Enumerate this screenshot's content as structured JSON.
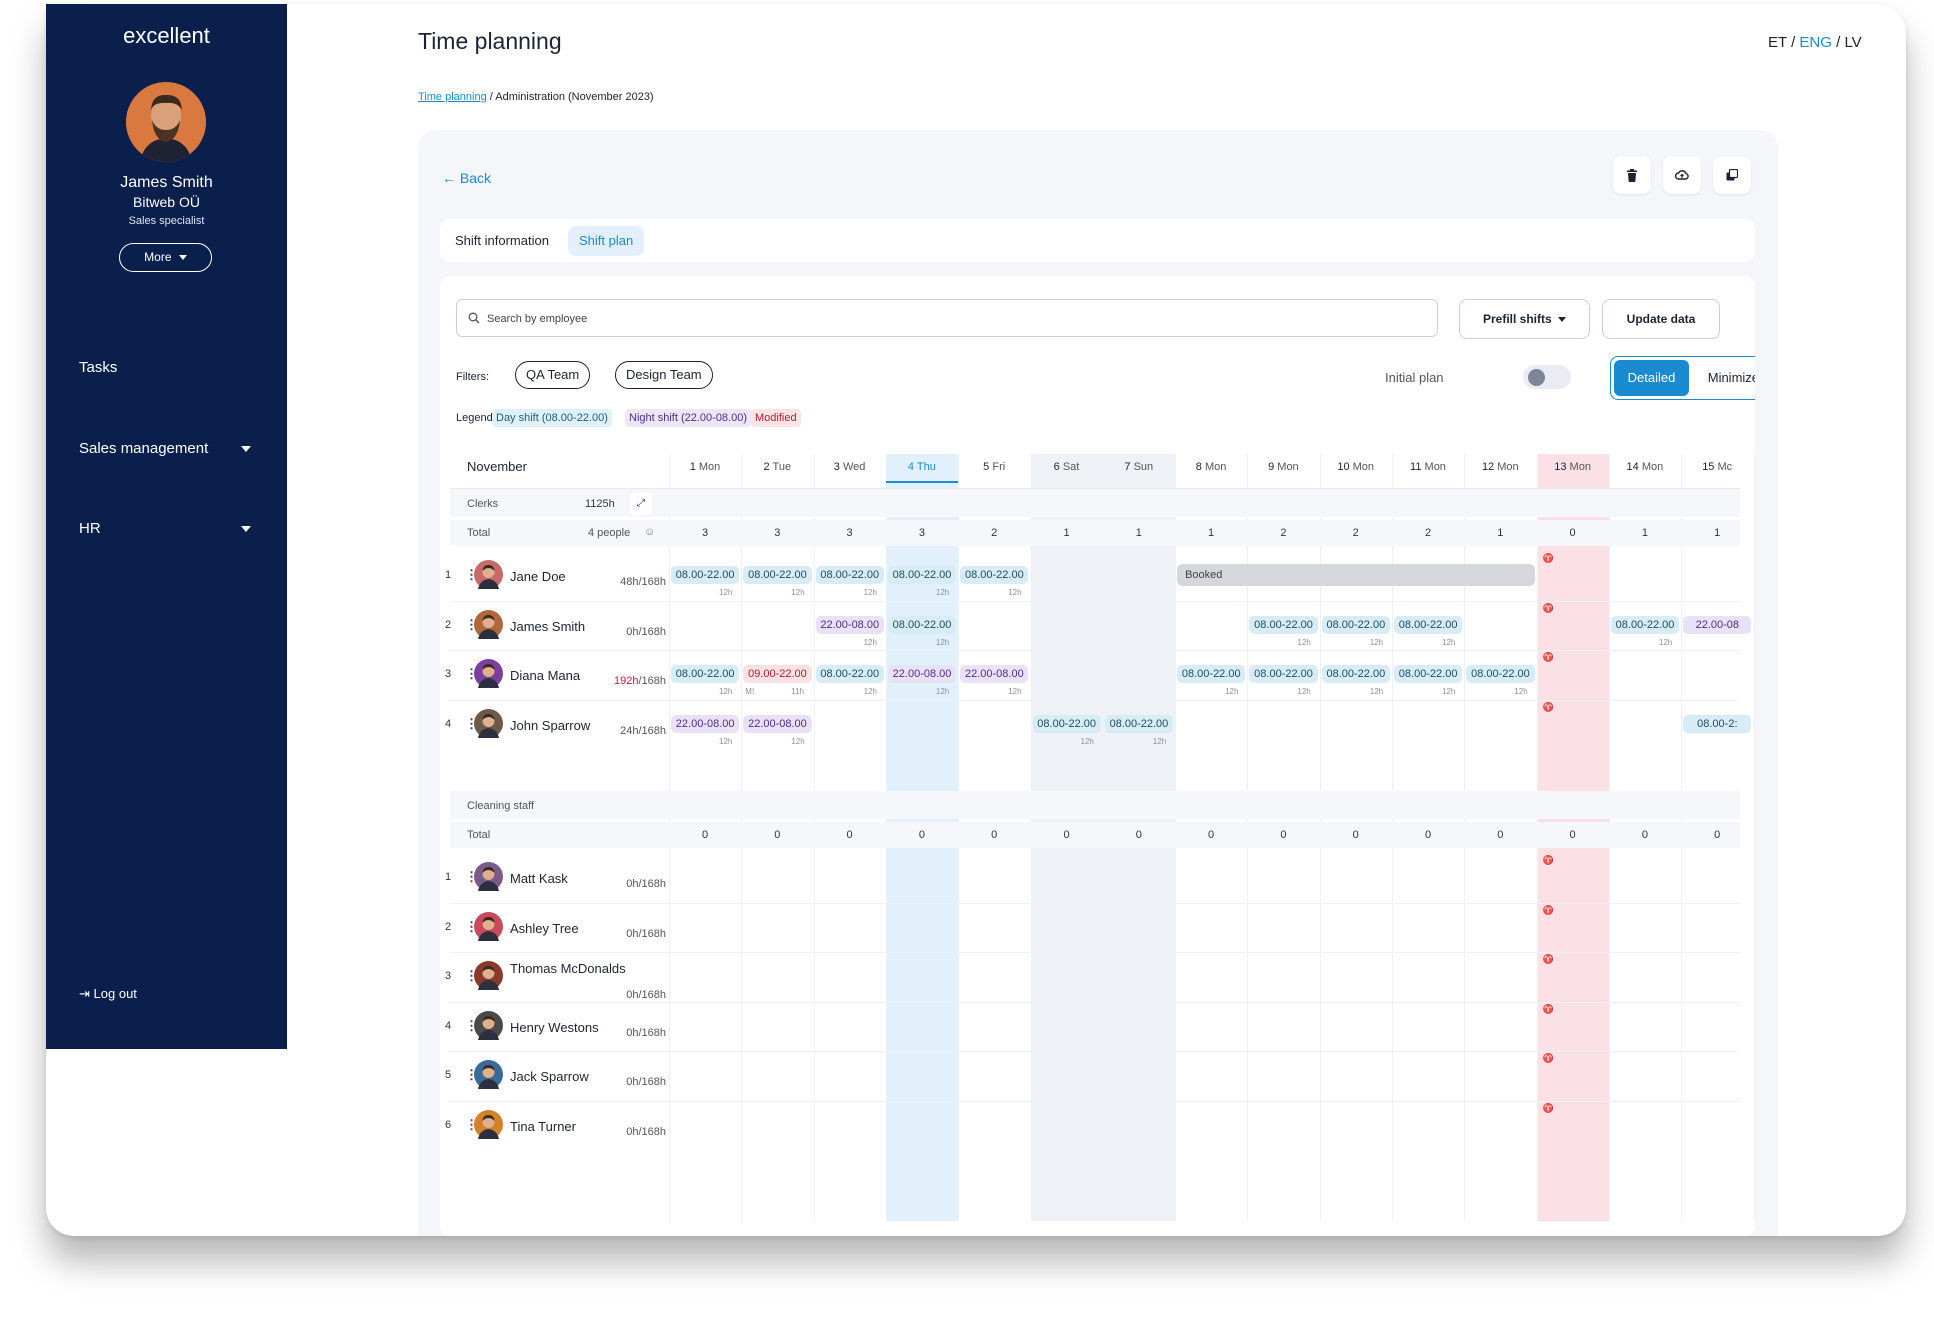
{
  "app": {
    "brand": "excellent",
    "page_title": "Time planning"
  },
  "user": {
    "name": "James Smith",
    "company": "Bitweb OÜ",
    "role": "Sales specialist",
    "more_label": "More"
  },
  "nav": {
    "tasks": "Tasks",
    "sales": "Sales management",
    "hr": "HR",
    "logout": "Log out"
  },
  "lang": {
    "et": "ET",
    "eng": "ENG",
    "lv": "LV",
    "sep": "/"
  },
  "breadcrumb": {
    "link": "Time planning",
    "current": " / Administration (November 2023)"
  },
  "back_label": "Back",
  "tabs": [
    "Shift information",
    "Shift plan"
  ],
  "search": {
    "placeholder": "Search by employee"
  },
  "buttons": {
    "prefill": "Prefill shifts",
    "update": "Update data"
  },
  "filters": {
    "label": "Filters:",
    "chips": [
      "QA Team",
      "Design Team"
    ]
  },
  "initial_plan": {
    "label": "Initial plan",
    "on": false
  },
  "view_toggle": {
    "detailed": "Detailed",
    "minimized": "Minimized",
    "selected": "Detailed"
  },
  "legend": {
    "label": "Legend:",
    "day": "Day shift (08.00-22.00)",
    "night": "Night shift (22.00-08.00)",
    "modified": "Modified"
  },
  "colors": {
    "accent": "#1a8bd0",
    "sidebar": "#0b1f4d",
    "day": "#d7ecf5",
    "night": "#e9e2f6",
    "modified": "#f9e1e4",
    "holiday": "#fbe1e5",
    "weekend": "#eef1f6",
    "today": "#e2f0fb"
  },
  "schedule": {
    "month": "November",
    "days": [
      {
        "num": "1",
        "dow": "Mon"
      },
      {
        "num": "2",
        "dow": "Tue"
      },
      {
        "num": "3",
        "dow": "Wed"
      },
      {
        "num": "4",
        "dow": "Thu"
      },
      {
        "num": "5",
        "dow": "Fri"
      },
      {
        "num": "6",
        "dow": "Sat"
      },
      {
        "num": "7",
        "dow": "Sun"
      },
      {
        "num": "8",
        "dow": "Mon"
      },
      {
        "num": "9",
        "dow": "Mon"
      },
      {
        "num": "10",
        "dow": "Mon"
      },
      {
        "num": "11",
        "dow": "Mon"
      },
      {
        "num": "12",
        "dow": "Mon"
      },
      {
        "num": "13",
        "dow": "Mon"
      },
      {
        "num": "14",
        "dow": "Mon"
      },
      {
        "num": "15",
        "dow": "Mc"
      }
    ],
    "today_index": 3,
    "weekend_indices": [
      5,
      6
    ],
    "holiday_indices": [
      12
    ],
    "groups": [
      {
        "name": "Clerks",
        "total_hours": "1125h",
        "total_label": "Total",
        "people_label": "4 people",
        "totals": [
          "3",
          "3",
          "3",
          "3",
          "2",
          "1",
          "1",
          "1",
          "2",
          "2",
          "2",
          "1",
          "0",
          "1",
          "1"
        ],
        "employees": [
          {
            "num": "1",
            "name": "Jane Doe",
            "hours": "48h/168h",
            "over": false,
            "avatar": "#c76a6a",
            "shifts": [
              {
                "d": 0,
                "t": "08.00-22.00",
                "k": "day",
                "dur": "12h"
              },
              {
                "d": 1,
                "t": "08.00-22.00",
                "k": "day",
                "dur": "12h"
              },
              {
                "d": 2,
                "t": "08.00-22.00",
                "k": "day",
                "dur": "12h"
              },
              {
                "d": 3,
                "t": "08.00-22.00",
                "k": "day",
                "dur": "12h"
              },
              {
                "d": 4,
                "t": "08.00-22.00",
                "k": "day",
                "dur": "12h"
              }
            ],
            "booked": {
              "label": "Booked",
              "from": 7,
              "to": 11
            }
          },
          {
            "num": "2",
            "name": "James Smith",
            "hours": "0h/168h",
            "over": false,
            "avatar": "#b0673b",
            "shifts": [
              {
                "d": 2,
                "t": "22.00-08.00",
                "k": "night",
                "dur": "12h"
              },
              {
                "d": 3,
                "t": "08.00-22.00",
                "k": "day",
                "dur": "12h"
              },
              {
                "d": 8,
                "t": "08.00-22.00",
                "k": "day",
                "dur": "12h"
              },
              {
                "d": 9,
                "t": "08.00-22.00",
                "k": "day",
                "dur": "12h"
              },
              {
                "d": 10,
                "t": "08.00-22.00",
                "k": "day",
                "dur": "12h"
              },
              {
                "d": 13,
                "t": "08.00-22.00",
                "k": "day",
                "dur": "12h"
              },
              {
                "d": 14,
                "t": "22.00-08",
                "k": "night",
                "dur": ""
              }
            ]
          },
          {
            "num": "3",
            "name": "Diana Mana",
            "hours_over": "192h",
            "hours": "/168h",
            "over": true,
            "avatar": "#7b3fa0",
            "shifts": [
              {
                "d": 0,
                "t": "08.00-22.00",
                "k": "day",
                "dur": "12h"
              },
              {
                "d": 1,
                "t": "09.00-22.00",
                "k": "mod",
                "dur": "M!"
              },
              {
                "d": 2,
                "t": "08.00-22.00",
                "k": "day",
                "dur": "12h"
              },
              {
                "d": 3,
                "t": "22.00-08.00",
                "k": "night",
                "dur": "12h"
              },
              {
                "d": 4,
                "t": "22.00-08.00",
                "k": "night",
                "dur": "12h"
              },
              {
                "d": 7,
                "t": "08.00-22.00",
                "k": "day",
                "dur": "12h"
              },
              {
                "d": 8,
                "t": "08.00-22.00",
                "k": "day",
                "dur": "12h"
              },
              {
                "d": 9,
                "t": "08.00-22.00",
                "k": "day",
                "dur": "12h"
              },
              {
                "d": 10,
                "t": "08.00-22.00",
                "k": "day",
                "dur": "12h"
              },
              {
                "d": 11,
                "t": "08.00-22.00",
                "k": "day",
                "dur": "12h"
              }
            ],
            "extra_dur": {
              "d": 1,
              "t": "11h"
            }
          },
          {
            "num": "4",
            "name": "John Sparrow",
            "hours": "24h/168h",
            "over": false,
            "avatar": "#6b5a4a",
            "shifts": [
              {
                "d": 0,
                "t": "22.00-08.00",
                "k": "night",
                "dur": "12h"
              },
              {
                "d": 1,
                "t": "22.00-08.00",
                "k": "night",
                "dur": "12h"
              },
              {
                "d": 5,
                "t": "08.00-22.00",
                "k": "day",
                "dur": "12h"
              },
              {
                "d": 6,
                "t": "08.00-22.00",
                "k": "day",
                "dur": "12h"
              },
              {
                "d": 14,
                "t": "08.00-2:",
                "k": "day",
                "dur": ""
              }
            ]
          }
        ]
      },
      {
        "name": "Cleaning staff",
        "total_label": "Total",
        "totals": [
          "0",
          "0",
          "0",
          "0",
          "0",
          "0",
          "0",
          "0",
          "0",
          "0",
          "0",
          "0",
          "0",
          "0",
          "0"
        ],
        "employees": [
          {
            "num": "1",
            "name": "Matt Kask",
            "hours": "0h/168h",
            "avatar": "#7a5a8a"
          },
          {
            "num": "2",
            "name": "Ashley Tree",
            "hours": "0h/168h",
            "avatar": "#c84a5c"
          },
          {
            "num": "3",
            "name": "Thomas McDonalds",
            "hours": "0h/168h",
            "avatar": "#8a3a2a"
          },
          {
            "num": "4",
            "name": "Henry Westons",
            "hours": "0h/168h",
            "avatar": "#4a4a4a"
          },
          {
            "num": "5",
            "name": "Jack Sparrow",
            "hours": "0h/168h",
            "avatar": "#3a6a9a"
          },
          {
            "num": "6",
            "name": "Tina Turner",
            "hours": "0h/168h",
            "avatar": "#d4822a"
          }
        ]
      }
    ]
  }
}
